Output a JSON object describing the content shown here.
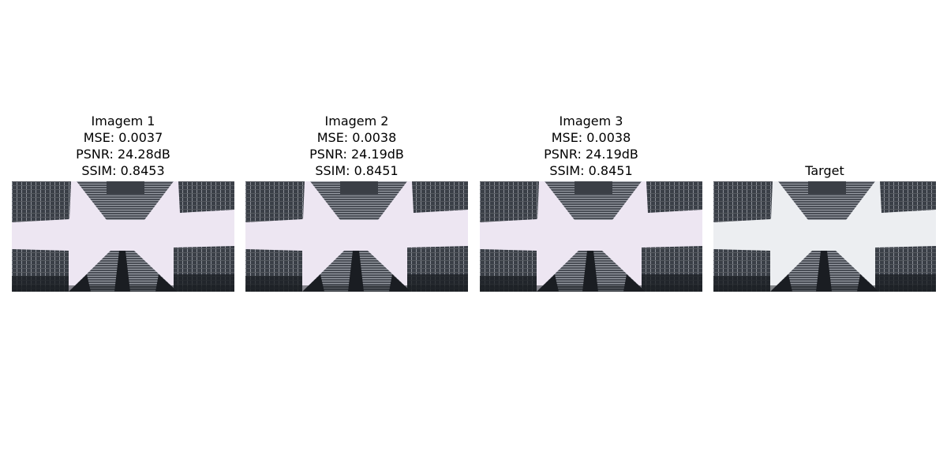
{
  "panels": [
    {
      "title": "Imagem 1",
      "mse": "MSE: 0.0037",
      "psnr": "PSNR: 24.28dB",
      "ssim": "SSIM: 0.8453",
      "sky_color": "#ede6f2"
    },
    {
      "title": "Imagem 2",
      "mse": "MSE: 0.0038",
      "psnr": "PSNR: 24.19dB",
      "ssim": "SSIM: 0.8451",
      "sky_color": "#ede6f2"
    },
    {
      "title": "Imagem 3",
      "mse": "MSE: 0.0038",
      "psnr": "PSNR: 24.19dB",
      "ssim": "SSIM: 0.8451",
      "sky_color": "#ede6f2"
    },
    {
      "title": "Target",
      "sky_color": "#eceef1"
    }
  ],
  "colors": {
    "building_dark": "#1a1d22",
    "building_mid": "#3a3f47",
    "grid_line": "#8b8f97"
  }
}
